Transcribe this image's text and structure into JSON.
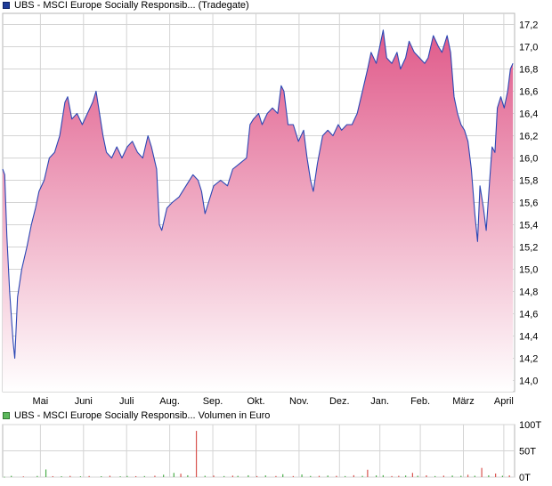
{
  "price_chart": {
    "legend_label": "UBS - MSCI Europe Socially Responsib... (Tradegate)",
    "legend_color": "#1f3c99"
  },
  "volume_chart": {
    "legend_label": "UBS - MSCI Europe Socially Responsib... Volumen in Euro",
    "legend_color": "#5cb85c"
  },
  "colors": {
    "line": "#2b47b4",
    "fill_top": "#e05a8a",
    "fill_bottom": "#ffffff",
    "volume_up": "#4cae4c",
    "volume_down": "#d9534f",
    "grid": "#d4d4d4"
  },
  "chart_data": [
    {
      "type": "area",
      "x_ticks": [
        "Mai",
        "Juni",
        "Juli",
        "Aug.",
        "Sep.",
        "Okt.",
        "Nov.",
        "Dez.",
        "Jan.",
        "Feb.",
        "März",
        "April"
      ],
      "y_ticks": [
        "14,0",
        "14,2",
        "14,4",
        "14,6",
        "14,8",
        "15,0",
        "15,2",
        "15,4",
        "15,6",
        "15,8",
        "16,0",
        "16,2",
        "16,4",
        "16,6",
        "16,8",
        "17,0",
        "17,2"
      ],
      "ylim": [
        13.9,
        17.3
      ],
      "grid": true,
      "legend_position": "top-left",
      "series": [
        {
          "name": "UBS - MSCI Europe Socially Responsib... (Tradegate)",
          "points": [
            [
              0.0,
              15.9
            ],
            [
              0.6,
              15.85
            ],
            [
              1.2,
              15.3
            ],
            [
              2.0,
              14.8
            ],
            [
              3.0,
              14.35
            ],
            [
              3.5,
              14.2
            ],
            [
              4.3,
              14.75
            ],
            [
              5.5,
              15.0
            ],
            [
              7.0,
              15.2
            ],
            [
              8.3,
              15.4
            ],
            [
              9.5,
              15.55
            ],
            [
              10.5,
              15.7
            ],
            [
              12.0,
              15.8
            ],
            [
              13.5,
              16.0
            ],
            [
              15.0,
              16.05
            ],
            [
              16.5,
              16.2
            ],
            [
              18.0,
              16.5
            ],
            [
              18.8,
              16.55
            ],
            [
              20.0,
              16.35
            ],
            [
              21.5,
              16.4
            ],
            [
              23.0,
              16.3
            ],
            [
              24.5,
              16.4
            ],
            [
              26.0,
              16.5
            ],
            [
              27.0,
              16.6
            ],
            [
              28.0,
              16.4
            ],
            [
              29.0,
              16.2
            ],
            [
              30.0,
              16.05
            ],
            [
              31.5,
              16.0
            ],
            [
              33.0,
              16.1
            ],
            [
              34.5,
              16.0
            ],
            [
              36.0,
              16.1
            ],
            [
              37.5,
              16.15
            ],
            [
              39.0,
              16.05
            ],
            [
              40.5,
              16.0
            ],
            [
              42.0,
              16.2
            ],
            [
              43.0,
              16.1
            ],
            [
              44.5,
              15.9
            ],
            [
              45.3,
              15.4
            ],
            [
              46.0,
              15.35
            ],
            [
              47.5,
              15.55
            ],
            [
              49.0,
              15.6
            ],
            [
              51.0,
              15.65
            ],
            [
              53.0,
              15.75
            ],
            [
              55.0,
              15.85
            ],
            [
              56.5,
              15.8
            ],
            [
              57.5,
              15.7
            ],
            [
              58.5,
              15.5
            ],
            [
              59.5,
              15.6
            ],
            [
              61.0,
              15.75
            ],
            [
              63.0,
              15.8
            ],
            [
              65.0,
              15.75
            ],
            [
              66.5,
              15.9
            ],
            [
              68.5,
              15.95
            ],
            [
              70.5,
              16.0
            ],
            [
              71.5,
              16.3
            ],
            [
              72.5,
              16.35
            ],
            [
              74.0,
              16.4
            ],
            [
              75.0,
              16.3
            ],
            [
              76.5,
              16.4
            ],
            [
              78.0,
              16.45
            ],
            [
              79.5,
              16.4
            ],
            [
              80.5,
              16.65
            ],
            [
              81.3,
              16.6
            ],
            [
              82.5,
              16.3
            ],
            [
              84.0,
              16.3
            ],
            [
              85.5,
              16.15
            ],
            [
              87.0,
              16.25
            ],
            [
              88.0,
              16.0
            ],
            [
              89.0,
              15.8
            ],
            [
              89.8,
              15.7
            ],
            [
              91.0,
              15.95
            ],
            [
              92.5,
              16.2
            ],
            [
              94.0,
              16.25
            ],
            [
              95.5,
              16.2
            ],
            [
              97.0,
              16.3
            ],
            [
              98.0,
              16.25
            ],
            [
              99.5,
              16.3
            ],
            [
              101.0,
              16.3
            ],
            [
              102.5,
              16.4
            ],
            [
              104.0,
              16.6
            ],
            [
              105.5,
              16.8
            ],
            [
              106.5,
              16.95
            ],
            [
              108.0,
              16.85
            ],
            [
              109.0,
              17.0
            ],
            [
              110.0,
              17.15
            ],
            [
              111.0,
              16.9
            ],
            [
              112.5,
              16.85
            ],
            [
              114.0,
              16.95
            ],
            [
              115.0,
              16.8
            ],
            [
              116.5,
              16.9
            ],
            [
              117.5,
              17.05
            ],
            [
              119.0,
              16.95
            ],
            [
              120.5,
              16.9
            ],
            [
              122.0,
              16.85
            ],
            [
              123.0,
              16.9
            ],
            [
              124.5,
              17.1
            ],
            [
              126.0,
              17.0
            ],
            [
              127.0,
              16.95
            ],
            [
              128.5,
              17.1
            ],
            [
              129.5,
              16.95
            ],
            [
              130.5,
              16.55
            ],
            [
              131.5,
              16.4
            ],
            [
              132.5,
              16.3
            ],
            [
              133.5,
              16.25
            ],
            [
              134.5,
              16.15
            ],
            [
              135.5,
              15.9
            ],
            [
              136.5,
              15.5
            ],
            [
              137.3,
              15.25
            ],
            [
              138.0,
              15.75
            ],
            [
              139.0,
              15.55
            ],
            [
              139.8,
              15.35
            ],
            [
              140.8,
              15.8
            ],
            [
              141.5,
              16.1
            ],
            [
              142.3,
              16.05
            ],
            [
              143.0,
              16.45
            ],
            [
              144.0,
              16.55
            ],
            [
              145.0,
              16.45
            ],
            [
              146.0,
              16.6
            ],
            [
              146.8,
              16.8
            ],
            [
              147.5,
              16.85
            ]
          ]
        }
      ]
    },
    {
      "type": "bar",
      "y_ticks": [
        "0T",
        "50T",
        "100T"
      ],
      "ylim": [
        0,
        100
      ],
      "grid": true,
      "series": [
        {
          "name": "UBS - MSCI Europe Socially Responsib... Volumen in Euro",
          "bars": [
            [
              0.5,
              0.6,
              "up"
            ],
            [
              2.5,
              2.4,
              "up"
            ],
            [
              6.0,
              1.3,
              "down"
            ],
            [
              10.0,
              2.2,
              "up"
            ],
            [
              12.5,
              14.5,
              "up"
            ],
            [
              14.5,
              1.8,
              "down"
            ],
            [
              17.0,
              1.6,
              "up"
            ],
            [
              19.5,
              2.3,
              "down"
            ],
            [
              22.5,
              1.5,
              "up"
            ],
            [
              25.0,
              2.1,
              "down"
            ],
            [
              28.5,
              1.7,
              "up"
            ],
            [
              31.0,
              2.6,
              "down"
            ],
            [
              34.0,
              1.5,
              "up"
            ],
            [
              36.0,
              2.2,
              "up"
            ],
            [
              38.5,
              1.8,
              "down"
            ],
            [
              41.0,
              2.0,
              "up"
            ],
            [
              44.0,
              2.6,
              "down"
            ],
            [
              46.5,
              4.5,
              "up"
            ],
            [
              49.5,
              8.0,
              "up"
            ],
            [
              51.5,
              6.5,
              "down"
            ],
            [
              53.5,
              3.5,
              "up"
            ],
            [
              56.0,
              88.0,
              "down"
            ],
            [
              58.5,
              2.5,
              "up"
            ],
            [
              61.0,
              3.0,
              "down"
            ],
            [
              64.0,
              2.0,
              "up"
            ],
            [
              66.5,
              2.8,
              "down"
            ],
            [
              68.0,
              2.4,
              "up"
            ],
            [
              71.0,
              3.5,
              "up"
            ],
            [
              73.5,
              2.0,
              "down"
            ],
            [
              76.0,
              3.2,
              "up"
            ],
            [
              79.0,
              2.1,
              "down"
            ],
            [
              81.0,
              5.5,
              "up"
            ],
            [
              84.0,
              2.0,
              "down"
            ],
            [
              86.5,
              5.0,
              "up"
            ],
            [
              89.0,
              2.2,
              "up"
            ],
            [
              91.5,
              2.4,
              "down"
            ],
            [
              94.0,
              3.0,
              "up"
            ],
            [
              96.5,
              2.4,
              "down"
            ],
            [
              99.0,
              2.0,
              "up"
            ],
            [
              101.5,
              3.6,
              "down"
            ],
            [
              104.0,
              2.4,
              "up"
            ],
            [
              105.5,
              14.0,
              "down"
            ],
            [
              108.0,
              3.2,
              "up"
            ],
            [
              110.0,
              3.6,
              "up"
            ],
            [
              112.5,
              2.0,
              "down"
            ],
            [
              114.5,
              2.5,
              "down"
            ],
            [
              116.5,
              3.0,
              "up"
            ],
            [
              118.5,
              8.0,
              "down"
            ],
            [
              120.0,
              2.6,
              "up"
            ],
            [
              122.5,
              3.4,
              "down"
            ],
            [
              125.0,
              2.0,
              "up"
            ],
            [
              127.5,
              2.8,
              "down"
            ],
            [
              130.0,
              3.0,
              "up"
            ],
            [
              132.5,
              2.5,
              "up"
            ],
            [
              134.5,
              4.5,
              "down"
            ],
            [
              136.5,
              2.6,
              "up"
            ],
            [
              138.5,
              17.5,
              "down"
            ],
            [
              140.5,
              3.4,
              "up"
            ],
            [
              142.5,
              6.8,
              "down"
            ],
            [
              144.5,
              2.6,
              "up"
            ],
            [
              146.5,
              3.3,
              "down"
            ]
          ]
        }
      ]
    }
  ]
}
